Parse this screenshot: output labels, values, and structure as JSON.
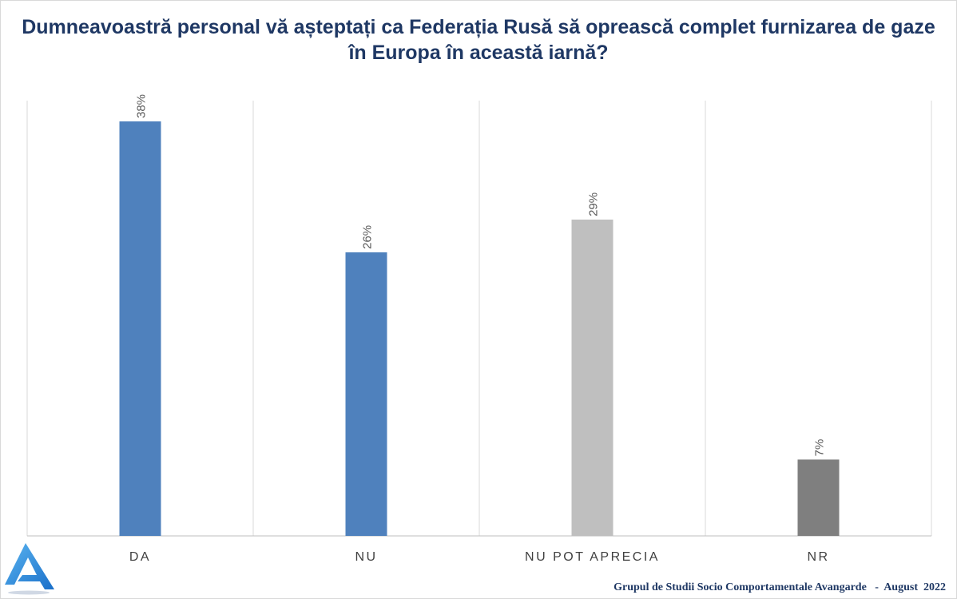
{
  "title": {
    "line1": "Dumneavoastră personal vă așteptați ca Federația Rusă să oprească complet furnizarea de gaze",
    "line2": "în Europa în această iarnă?"
  },
  "chart_data": {
    "type": "bar",
    "categories": [
      "DA",
      "NU",
      "NU POT APRECIA",
      "NR"
    ],
    "values": [
      38,
      26,
      29,
      7
    ],
    "data_labels": [
      "38%",
      "26%",
      "29%",
      "7%"
    ],
    "colors": [
      "#4f81bd",
      "#4f81bd",
      "#bfbfbf",
      "#7f7f7f"
    ],
    "ylim": [
      0,
      40
    ],
    "grid": "vertical category separators",
    "legend": "none",
    "xlabel": "",
    "ylabel": ""
  },
  "footer": {
    "source": "Grupul de Studii Socio Comportamentale Avangarde   -  August  2022"
  },
  "logo": {
    "icon": "avangarde-logo-icon",
    "color": "#2e86de"
  }
}
